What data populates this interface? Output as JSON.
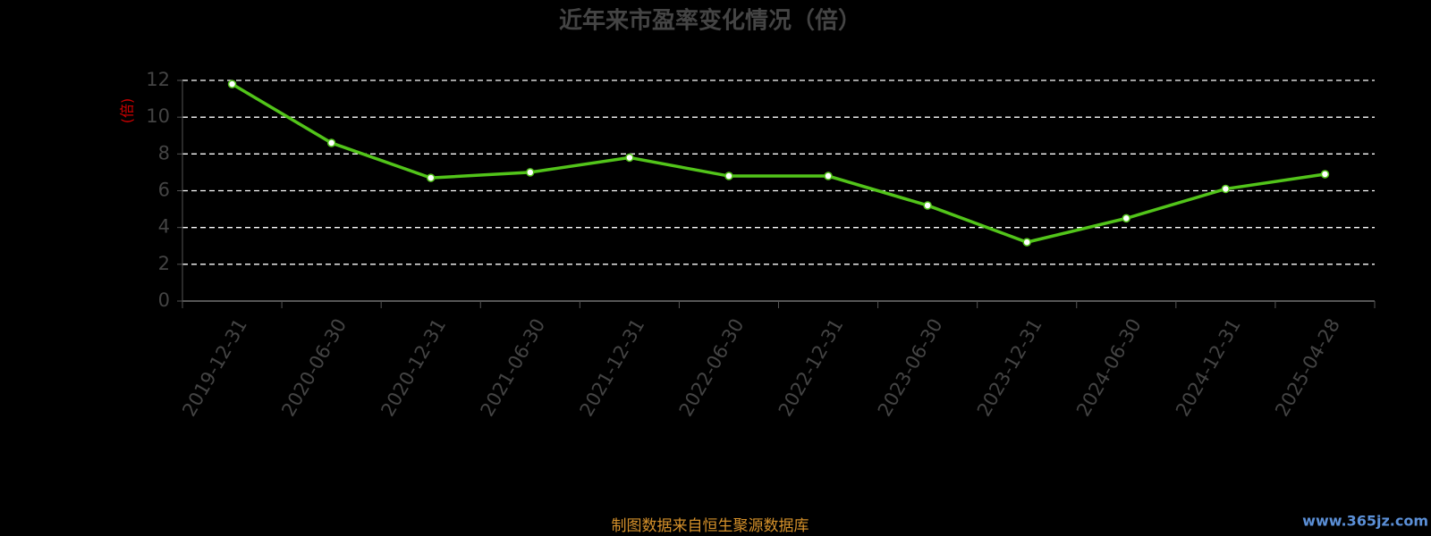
{
  "chart_data": {
    "type": "line",
    "title": "近年来市盈率变化情况（倍）",
    "y_label": "(倍)",
    "categories": [
      "2019-12-31",
      "2020-06-30",
      "2020-12-31",
      "2021-06-30",
      "2021-12-31",
      "2022-06-30",
      "2022-12-31",
      "2023-06-30",
      "2023-12-31",
      "2024-06-30",
      "2024-12-31",
      "2025-04-28"
    ],
    "series": [
      {
        "name": "市盈率",
        "color": "#52c41a",
        "values": [
          11.8,
          8.6,
          6.7,
          7.0,
          7.8,
          6.8,
          6.8,
          5.2,
          3.2,
          4.5,
          6.1,
          6.9
        ]
      }
    ],
    "ylim": [
      0,
      12
    ],
    "yticks": [
      0,
      2,
      4,
      6,
      8,
      10,
      12
    ],
    "grid": true,
    "source": "制图数据来自恒生聚源数据库",
    "watermark": "www.365jz.com"
  }
}
